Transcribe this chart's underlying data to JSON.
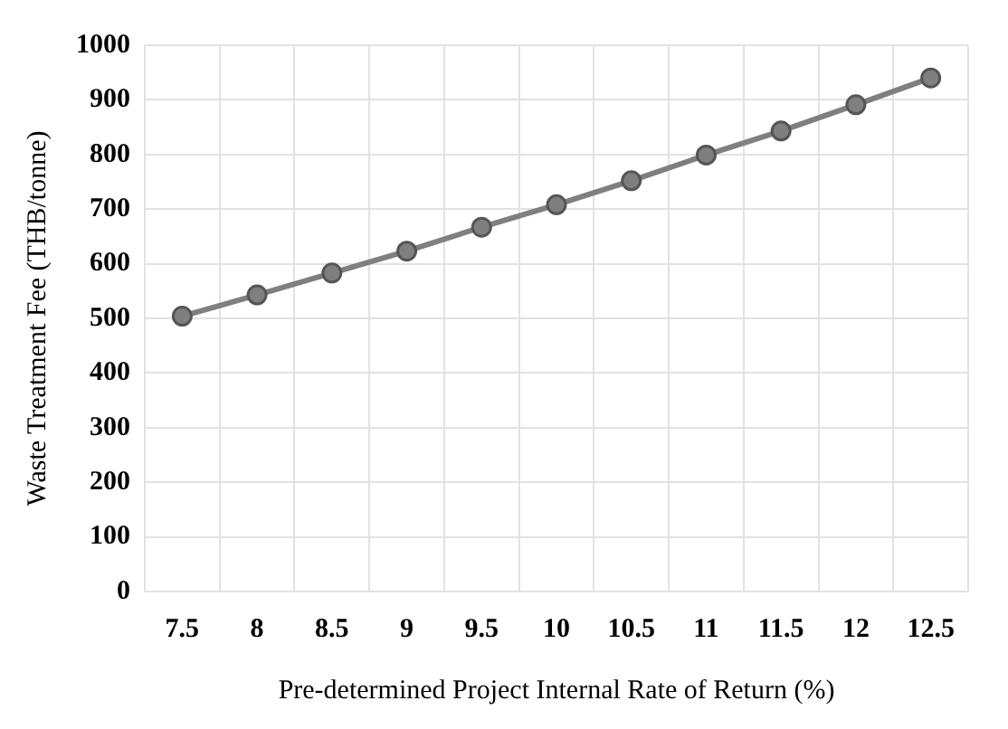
{
  "chart_data": {
    "type": "line",
    "xlabel": "Pre-determined Project Internal Rate of Return (%)",
    "ylabel": "Waste Treatment Fee (THB/tonne)",
    "categories": [
      "7.5",
      "8",
      "8.5",
      "9",
      "9.5",
      "10",
      "10.5",
      "11",
      "11.5",
      "12",
      "12.5"
    ],
    "series": [
      {
        "color": "#7f7f7f",
        "values": [
          504,
          543,
          583,
          623,
          667,
          708,
          752,
          799,
          843,
          891,
          940
        ]
      }
    ],
    "ylim": [
      0,
      1000
    ],
    "yticks": [
      0,
      100,
      200,
      300,
      400,
      500,
      600,
      700,
      800,
      900,
      1000
    ],
    "grid": true,
    "legend": false,
    "marker": "circle",
    "line_style": "solid"
  }
}
